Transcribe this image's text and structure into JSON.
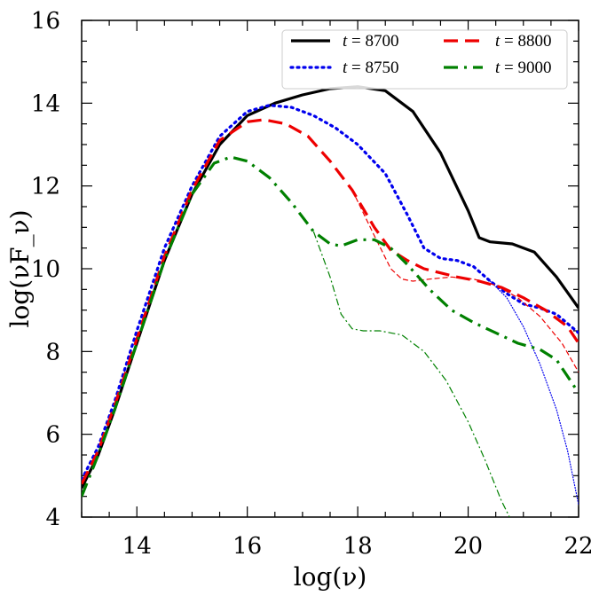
{
  "chart_data": {
    "type": "line",
    "title": "",
    "xlabel": "log(ν)",
    "ylabel": "log(νF_ν)",
    "xlim": [
      13,
      22
    ],
    "ylim": [
      4,
      16
    ],
    "xticks": [
      "14",
      "16",
      "18",
      "20",
      "22"
    ],
    "yticks": [
      "4",
      "6",
      "8",
      "10",
      "12",
      "14",
      "16"
    ],
    "legend_position": "top-right",
    "series": [
      {
        "name": "t = 8700",
        "legend_var": "t",
        "legend_eq": "= 8700",
        "color": "#000000",
        "style": "solid",
        "weight": "thick",
        "x": [
          13.0,
          13.3,
          13.6,
          14.0,
          14.5,
          15.0,
          15.5,
          16.0,
          16.5,
          17.0,
          17.5,
          18.0,
          18.5,
          19.0,
          19.5,
          20.0,
          20.2,
          20.4,
          20.8,
          21.2,
          21.6,
          22.0
        ],
        "y": [
          4.7,
          5.5,
          6.6,
          8.2,
          10.2,
          11.8,
          13.0,
          13.7,
          14.0,
          14.2,
          14.35,
          14.4,
          14.3,
          13.8,
          12.8,
          11.4,
          10.75,
          10.65,
          10.6,
          10.4,
          9.8,
          9.05
        ]
      },
      {
        "name": "t = 8750",
        "legend_var": "t",
        "legend_eq": "= 8750",
        "color": "#0000ee",
        "style": "dotted",
        "weight": "thick",
        "x": [
          13.0,
          13.3,
          13.6,
          14.0,
          14.5,
          15.0,
          15.5,
          16.0,
          16.4,
          16.8,
          17.2,
          17.6,
          18.0,
          18.5,
          18.9,
          19.2,
          19.5,
          19.8,
          20.1,
          20.4,
          20.7,
          21.0,
          21.3,
          21.6,
          22.0
        ],
        "y": [
          4.9,
          5.7,
          6.8,
          8.5,
          10.5,
          12.0,
          13.2,
          13.8,
          13.95,
          13.9,
          13.7,
          13.4,
          13.0,
          12.3,
          11.3,
          10.5,
          10.25,
          10.2,
          10.05,
          9.7,
          9.4,
          9.15,
          9.05,
          8.9,
          8.45
        ]
      },
      {
        "name": "t = 8750 (thin)",
        "legend": false,
        "color": "#0000ee",
        "style": "dotted",
        "weight": "thin",
        "x": [
          20.4,
          20.7,
          21.0,
          21.3,
          21.6,
          21.8,
          22.0
        ],
        "y": [
          9.7,
          9.3,
          8.6,
          7.7,
          6.6,
          5.6,
          4.3
        ]
      },
      {
        "name": "t = 8800",
        "legend_var": "t",
        "legend_eq": "= 8800",
        "color": "#ee0000",
        "style": "dashed",
        "weight": "thick",
        "x": [
          13.0,
          13.3,
          13.6,
          14.0,
          14.5,
          15.0,
          15.5,
          16.0,
          16.3,
          16.7,
          17.1,
          17.5,
          17.9,
          18.3,
          18.6,
          18.9,
          19.2,
          19.5,
          19.8,
          20.2,
          20.6,
          21.0,
          21.4,
          21.8,
          22.0
        ],
        "y": [
          4.8,
          5.6,
          6.7,
          8.3,
          10.3,
          11.9,
          13.1,
          13.55,
          13.6,
          13.5,
          13.2,
          12.6,
          11.9,
          11.0,
          10.45,
          10.2,
          10.0,
          9.9,
          9.8,
          9.7,
          9.55,
          9.3,
          9.0,
          8.6,
          8.2
        ]
      },
      {
        "name": "t = 8800 (thin)",
        "legend": false,
        "color": "#ee0000",
        "style": "dashed",
        "weight": "thin",
        "x": [
          17.9,
          18.3,
          18.6,
          18.8,
          19.0,
          19.3,
          19.7,
          20.1,
          20.5,
          20.9,
          21.3,
          21.7,
          22.0
        ],
        "y": [
          11.9,
          10.8,
          10.0,
          9.75,
          9.7,
          9.75,
          9.8,
          9.75,
          9.6,
          9.3,
          8.85,
          8.2,
          7.5
        ]
      },
      {
        "name": "t = 9000",
        "legend_var": "t",
        "legend_eq": "= 9000",
        "color": "#008000",
        "style": "dashdot",
        "weight": "thick",
        "x": [
          13.0,
          13.3,
          13.6,
          14.0,
          14.5,
          15.0,
          15.4,
          15.7,
          16.0,
          16.4,
          16.8,
          17.2,
          17.5,
          17.7,
          18.0,
          18.3,
          18.6,
          18.9,
          19.3,
          19.7,
          20.1,
          20.5,
          20.9,
          21.3,
          21.6,
          22.0
        ],
        "y": [
          4.5,
          5.5,
          6.6,
          8.2,
          10.2,
          11.8,
          12.55,
          12.7,
          12.6,
          12.2,
          11.6,
          10.9,
          10.6,
          10.55,
          10.7,
          10.7,
          10.5,
          10.1,
          9.5,
          9.0,
          8.7,
          8.45,
          8.2,
          8.05,
          7.8,
          7.0
        ]
      },
      {
        "name": "t = 9000 (thin)",
        "legend": false,
        "color": "#008000",
        "style": "dashdot",
        "weight": "thin",
        "x": [
          17.2,
          17.5,
          17.7,
          17.9,
          18.1,
          18.4,
          18.8,
          19.2,
          19.6,
          20.0,
          20.3,
          20.6,
          20.75
        ],
        "y": [
          10.9,
          9.8,
          8.9,
          8.55,
          8.5,
          8.5,
          8.4,
          8.0,
          7.3,
          6.3,
          5.4,
          4.4,
          4.0
        ]
      }
    ]
  }
}
